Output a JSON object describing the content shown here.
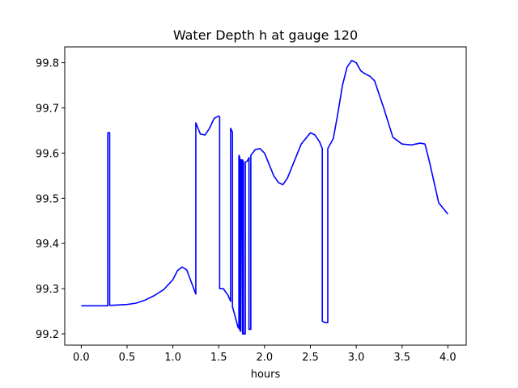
{
  "chart_data": {
    "type": "line",
    "title": "Water Depth h at gauge 120",
    "xlabel": "hours",
    "ylabel": "",
    "xlim": [
      -0.18,
      4.2
    ],
    "ylim": [
      99.175,
      99.835
    ],
    "xticks": [
      0.0,
      0.5,
      1.0,
      1.5,
      2.0,
      2.5,
      3.0,
      3.5,
      4.0
    ],
    "xtick_labels": [
      "0.0",
      "0.5",
      "1.0",
      "1.5",
      "2.0",
      "2.5",
      "3.0",
      "3.5",
      "4.0"
    ],
    "yticks": [
      99.2,
      99.3,
      99.4,
      99.5,
      99.6,
      99.7,
      99.8
    ],
    "ytick_labels": [
      "99.2",
      "99.3",
      "99.4",
      "99.5",
      "99.6",
      "99.7",
      "99.8"
    ],
    "grid": false,
    "series": [
      {
        "color": "#0000ff",
        "x": [
          0.0,
          0.29,
          0.29,
          0.31,
          0.31,
          0.5,
          0.6,
          0.7,
          0.8,
          0.9,
          1.0,
          1.05,
          1.1,
          1.15,
          1.2,
          1.25,
          1.25,
          1.3,
          1.35,
          1.4,
          1.45,
          1.5,
          1.51,
          1.51,
          1.55,
          1.6,
          1.63,
          1.63,
          1.65,
          1.65,
          1.68,
          1.71,
          1.72,
          1.72,
          1.73,
          1.73,
          1.74,
          1.74,
          1.75,
          1.76,
          1.76,
          1.77,
          1.77,
          1.78,
          1.79,
          1.79,
          1.81,
          1.83,
          1.83,
          1.85,
          1.85,
          1.9,
          1.95,
          2.0,
          2.05,
          2.1,
          2.15,
          2.2,
          2.25,
          2.3,
          2.4,
          2.5,
          2.55,
          2.6,
          2.63,
          2.63,
          2.66,
          2.69,
          2.69,
          2.75,
          2.8,
          2.85,
          2.9,
          2.95,
          3.0,
          3.05,
          3.1,
          3.15,
          3.2,
          3.3,
          3.4,
          3.5,
          3.6,
          3.7,
          3.75,
          3.8,
          3.9,
          4.0
        ],
        "y": [
          99.262,
          99.262,
          99.645,
          99.645,
          99.263,
          99.265,
          99.268,
          99.275,
          99.285,
          99.298,
          99.32,
          99.34,
          99.348,
          99.342,
          99.315,
          99.288,
          99.667,
          99.642,
          99.64,
          99.655,
          99.677,
          99.682,
          99.68,
          99.3,
          99.3,
          99.286,
          99.272,
          99.655,
          99.646,
          99.26,
          99.238,
          99.215,
          99.212,
          99.595,
          99.59,
          99.208,
          99.206,
          99.585,
          99.585,
          99.2,
          99.585,
          99.58,
          99.2,
          99.2,
          99.2,
          99.58,
          99.582,
          99.59,
          99.21,
          99.21,
          99.595,
          99.608,
          99.61,
          99.6,
          99.575,
          99.55,
          99.535,
          99.53,
          99.545,
          99.57,
          99.62,
          99.645,
          99.64,
          99.625,
          99.61,
          99.228,
          99.225,
          99.225,
          99.61,
          99.632,
          99.688,
          99.75,
          99.79,
          99.805,
          99.8,
          99.782,
          99.775,
          99.77,
          99.76,
          99.7,
          99.635,
          99.62,
          99.618,
          99.622,
          99.62,
          99.58,
          99.49,
          99.465
        ]
      }
    ]
  }
}
